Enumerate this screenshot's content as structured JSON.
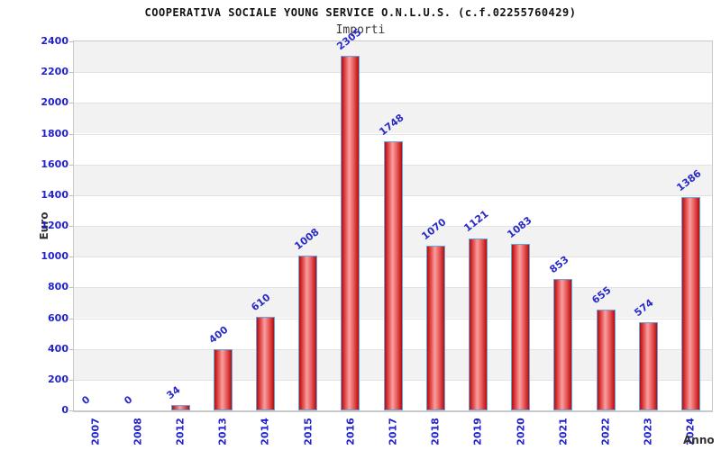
{
  "chart_data": {
    "type": "bar",
    "title": "COOPERATIVA SOCIALE YOUNG SERVICE O.N.L.U.S. (c.f.02255760429)",
    "subtitle": "Importi",
    "xlabel": "Anno",
    "ylabel": "Euro",
    "categories": [
      "2007",
      "2008",
      "2012",
      "2013",
      "2014",
      "2015",
      "2016",
      "2017",
      "2018",
      "2019",
      "2020",
      "2021",
      "2022",
      "2023",
      "2024"
    ],
    "values": [
      0,
      0,
      34,
      400,
      610,
      1008,
      2305,
      1748,
      1070,
      1121,
      1083,
      853,
      655,
      574,
      1386
    ],
    "ylim": [
      0,
      2400
    ],
    "ystep": 200,
    "grid": "alternating-horizontal-bands",
    "legend": "none",
    "x_tick_rotation_deg": 90,
    "value_label_rotation_deg": 38,
    "colors": {
      "axis_label_blue": "#2222cc",
      "value_label_blue": "#2a2ac8",
      "bar_edge_red": "#b50c0c",
      "bar_mid_red": "#e85555",
      "bar_highlight_pink": "#f7a0a0",
      "bar_border_blue": "#64a7e0",
      "band_gray": "#f2f2f2",
      "band_white": "#ffffff",
      "plot_border_gray": "#c9c9c9",
      "axis_title_gray": "#333333"
    }
  }
}
